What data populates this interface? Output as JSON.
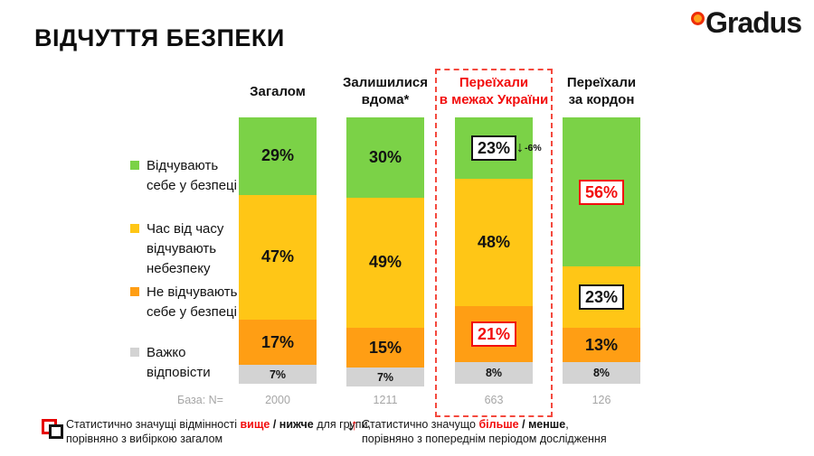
{
  "meta": {
    "title": "ВІДЧУТТЯ БЕЗПЕКИ",
    "logo_text": "Gradus"
  },
  "colors": {
    "green": "#7BD247",
    "yellow": "#FFC616",
    "orange": "#FF9E14",
    "gray": "#D3D3D3",
    "red": "#F20D0D",
    "dash_red": "#F4493E",
    "muted_gray": "#A6A6A6"
  },
  "icons": {
    "down_arrow": "↓",
    "up_arrow": "↑"
  },
  "legend": {
    "items": [
      {
        "color": "green",
        "label": "Відчувають себе у безпеці"
      },
      {
        "color": "yellow",
        "label": "Час від часу відчувають небезпеку"
      },
      {
        "color": "orange",
        "label": "Не відчувають себе у безпеці"
      },
      {
        "color": "gray",
        "label": "Важко відповісти"
      }
    ]
  },
  "columns": [
    {
      "header_lines": [
        "Загалом"
      ],
      "highlighted": false,
      "base": "2000",
      "segments": [
        {
          "color": "green",
          "value": 29,
          "label": "29%",
          "style": "plain"
        },
        {
          "color": "yellow",
          "value": 47,
          "label": "47%",
          "style": "plain"
        },
        {
          "color": "orange",
          "value": 17,
          "label": "17%",
          "style": "plain"
        },
        {
          "color": "gray",
          "value": 7,
          "label": "7%",
          "style": "plain",
          "small": true
        }
      ]
    },
    {
      "header_lines": [
        "Залишилися",
        "вдома*"
      ],
      "highlighted": false,
      "base": "1211",
      "segments": [
        {
          "color": "green",
          "value": 30,
          "label": "30%",
          "style": "plain"
        },
        {
          "color": "yellow",
          "value": 49,
          "label": "49%",
          "style": "plain"
        },
        {
          "color": "orange",
          "value": 15,
          "label": "15%",
          "style": "plain"
        },
        {
          "color": "gray",
          "value": 7,
          "label": "7%",
          "style": "plain",
          "small": true
        }
      ]
    },
    {
      "header_lines": [
        "Переїхали",
        "в межах України"
      ],
      "highlighted": true,
      "base": "663",
      "segments": [
        {
          "color": "green",
          "value": 23,
          "label": "23%",
          "style": "boxed-black",
          "change": "-6%"
        },
        {
          "color": "yellow",
          "value": 48,
          "label": "48%",
          "style": "plain"
        },
        {
          "color": "orange",
          "value": 21,
          "label": "21%",
          "style": "boxed-red"
        },
        {
          "color": "gray",
          "value": 8,
          "label": "8%",
          "style": "plain",
          "small": true
        }
      ]
    },
    {
      "header_lines": [
        "Переїхали",
        "за кордон"
      ],
      "highlighted": false,
      "base": "126",
      "segments": [
        {
          "color": "green",
          "value": 56,
          "label": "56%",
          "style": "boxed-red"
        },
        {
          "color": "yellow",
          "value": 23,
          "label": "23%",
          "style": "boxed-black"
        },
        {
          "color": "orange",
          "value": 13,
          "label": "13%",
          "style": "plain"
        },
        {
          "color": "gray",
          "value": 8,
          "label": "8%",
          "style": "plain",
          "small": true
        }
      ]
    }
  ],
  "base_row": {
    "label": "База: N="
  },
  "footnotes": {
    "left": {
      "prefix": "Статистично значущі відмінності ",
      "higher": "вище",
      "sep": " / ",
      "lower": "нижче",
      "suffix": " для групи,",
      "line2": "порівняно з вибіркою загалом"
    },
    "right": {
      "prefix": "Статистично значущо ",
      "more": "більше",
      "sep": " / ",
      "less": "менше",
      "suffix": ",",
      "line2": "порівняно з попереднім періодом дослідження"
    }
  },
  "chart_data": {
    "type": "bar",
    "stacked": true,
    "unit": "%",
    "title": "ВІДЧУТТЯ БЕЗПЕКИ",
    "categories": [
      "Загалом",
      "Залишилися вдома*",
      "Переїхали в межах України",
      "Переїхали за кордон"
    ],
    "series": [
      {
        "name": "Відчувають себе у безпеці",
        "color": "#7BD247",
        "values": [
          29,
          30,
          23,
          56
        ]
      },
      {
        "name": "Час від часу відчувають небезпеку",
        "color": "#FFC616",
        "values": [
          47,
          49,
          48,
          23
        ]
      },
      {
        "name": "Не відчувають себе у безпеці",
        "color": "#FF9E14",
        "values": [
          17,
          15,
          21,
          13
        ]
      },
      {
        "name": "Важко відповісти",
        "color": "#D3D3D3",
        "values": [
          7,
          7,
          8,
          8
        ]
      }
    ],
    "bases": [
      2000,
      1211,
      663,
      126
    ],
    "highlighted_category": "Переїхали в межах України",
    "legend_position": "left",
    "ylim": [
      0,
      100
    ],
    "annotations": [
      {
        "category": "Переїхали в межах України",
        "segment": "Відчувають себе у безпеці",
        "value": "23%",
        "marker": "black-box",
        "change": "-6%"
      },
      {
        "category": "Переїхали в межах України",
        "segment": "Не відчувають себе у безпеці",
        "value": "21%",
        "marker": "red-box"
      },
      {
        "category": "Переїхали за кордон",
        "segment": "Відчувають себе у безпеці",
        "value": "56%",
        "marker": "red-box"
      },
      {
        "category": "Переїхали за кордон",
        "segment": "Час від часу відчувають небезпеку",
        "value": "23%",
        "marker": "black-box"
      }
    ]
  }
}
